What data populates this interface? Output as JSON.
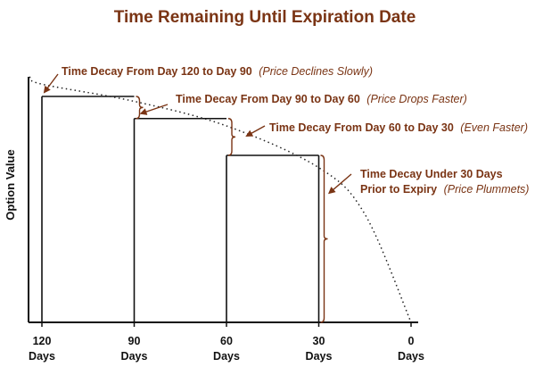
{
  "colors": {
    "accent": "#7a3414",
    "axis": "#111111",
    "bars": "#111111",
    "curve": "#222222"
  },
  "chart_data": {
    "type": "bar",
    "title": "Time Remaining Until Expiration Date",
    "xlabel": "",
    "ylabel": "Option Value",
    "x_axis_reversed": true,
    "x_ticks": [
      {
        "value": 120,
        "label": "120",
        "unit": "Days"
      },
      {
        "value": 90,
        "label": "90",
        "unit": "Days"
      },
      {
        "value": 60,
        "label": "60",
        "unit": "Days"
      },
      {
        "value": 30,
        "label": "30",
        "unit": "Days"
      },
      {
        "value": 0,
        "label": "0",
        "unit": "Days"
      }
    ],
    "ylim": [
      0,
      100
    ],
    "xlim": [
      120,
      0
    ],
    "grid": false,
    "bars": [
      {
        "x_start": 120,
        "x_end": 90,
        "value": 92
      },
      {
        "x_start": 90,
        "x_end": 60,
        "value": 83
      },
      {
        "x_start": 60,
        "x_end": 30,
        "value": 68
      },
      {
        "x_start": 30,
        "x_end": 0,
        "value": 0
      }
    ],
    "curve": {
      "style": "dotted",
      "points": [
        {
          "x": 124,
          "y": 100
        },
        {
          "x": 120,
          "y": 97
        },
        {
          "x": 90,
          "y": 90
        },
        {
          "x": 60,
          "y": 80
        },
        {
          "x": 30,
          "y": 63
        },
        {
          "x": 15,
          "y": 44
        },
        {
          "x": 0,
          "y": 0
        }
      ]
    },
    "annotations": [
      {
        "text": "Time Decay From Day 120 to Day 90",
        "note": "(Price Declines Slowly)",
        "range": [
          120,
          90
        ],
        "y_value": 97
      },
      {
        "text": "Time Decay From Day 90 to Day 60",
        "note": "(Price Drops Faster)",
        "range": [
          90,
          60
        ],
        "y_value": 92
      },
      {
        "text": "Time Decay From Day 60 to Day 30",
        "note": "(Even Faster)",
        "range": [
          60,
          30
        ],
        "y_value": 83
      },
      {
        "text": "Time Decay Under 30 Days",
        "text2": "Prior to Expiry",
        "note": "(Price Plummets)",
        "range": [
          30,
          0
        ],
        "y_value": 68
      }
    ]
  }
}
